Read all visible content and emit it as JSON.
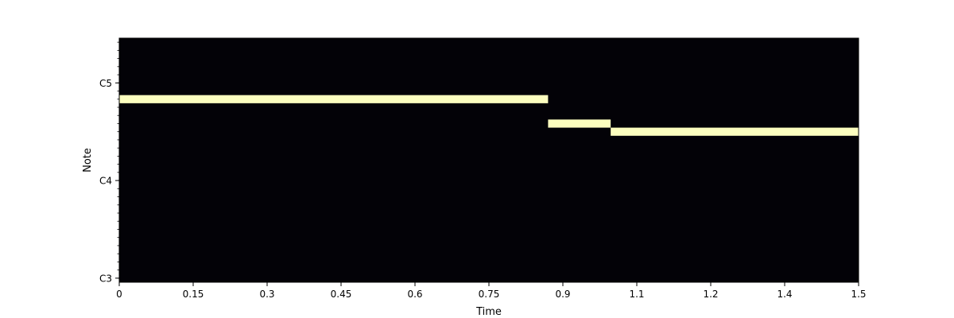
{
  "chart_data": {
    "type": "heatmap",
    "subtype": "piano-roll",
    "xlabel": "Time",
    "ylabel": "Note",
    "xlim": [
      0,
      1.5
    ],
    "x_ticks": [
      {
        "value": 0,
        "label": "0"
      },
      {
        "value": 0.15,
        "label": "0.15"
      },
      {
        "value": 0.3,
        "label": "0.3"
      },
      {
        "value": 0.45,
        "label": "0.45"
      },
      {
        "value": 0.6,
        "label": "0.6"
      },
      {
        "value": 0.75,
        "label": "0.75"
      },
      {
        "value": 0.9,
        "label": "0.9"
      },
      {
        "value": 1.05,
        "label": "1.1"
      },
      {
        "value": 1.2,
        "label": "1.2"
      },
      {
        "value": 1.35,
        "label": "1.4"
      },
      {
        "value": 1.5,
        "label": "1.5"
      }
    ],
    "y_range_midi": [
      47.5,
      77.5
    ],
    "y_ticks": [
      {
        "midi": 48,
        "label": "C3"
      },
      {
        "midi": 60,
        "label": "C4"
      },
      {
        "midi": 72,
        "label": "C5"
      }
    ],
    "y_minor_ticks": true,
    "notes": [
      {
        "start": 0.0,
        "end": 0.87,
        "midi": 70
      },
      {
        "start": 0.87,
        "end": 0.997,
        "midi": 67
      },
      {
        "start": 0.997,
        "end": 1.5,
        "midi": 66
      }
    ],
    "colors": {
      "background": "#030207",
      "note": "#fcfebf",
      "axis": "#000000"
    }
  }
}
